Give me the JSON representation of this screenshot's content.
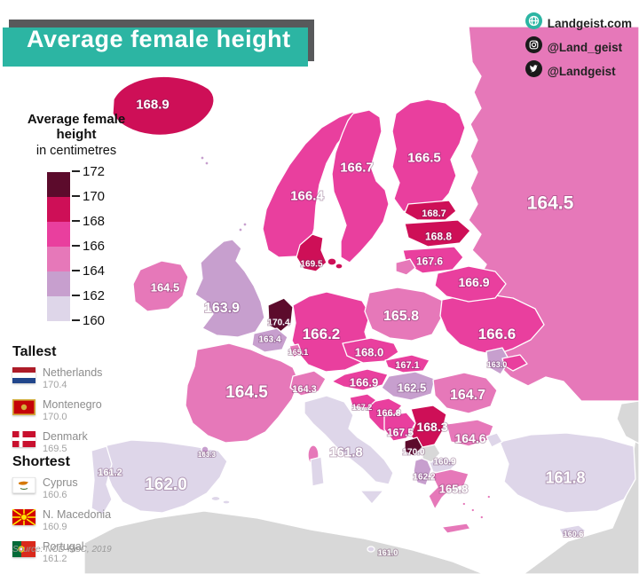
{
  "title": "Average female height",
  "branding": {
    "website": "Landgeist.com",
    "instagram": "@Land_geist",
    "twitter": "@Landgeist"
  },
  "legend": {
    "title": "Average female height",
    "subtitle": "in centimetres",
    "ticks": [
      "172",
      "170",
      "168",
      "166",
      "164",
      "162",
      "160"
    ],
    "band_colors": [
      "#ded6e9",
      "#c79fce",
      "#e678b9",
      "#e93f9e",
      "#ce0f57",
      "#5c0b2c"
    ],
    "no_data_color": "#d8d8d8"
  },
  "tallest": {
    "heading": "Tallest",
    "entries": [
      {
        "flag": "nl",
        "country": "Netherlands",
        "value": "170.4"
      },
      {
        "flag": "me",
        "country": "Montenegro",
        "value": "170.0"
      },
      {
        "flag": "dk",
        "country": "Denmark",
        "value": "169.5"
      }
    ]
  },
  "shortest": {
    "heading": "Shortest",
    "entries": [
      {
        "flag": "cy",
        "country": "Cyprus",
        "value": "160.6"
      },
      {
        "flag": "mk",
        "country": "N. Macedonia",
        "value": "160.9"
      },
      {
        "flag": "pt",
        "country": "Portugal",
        "value": "161.2"
      }
    ]
  },
  "source": "Source: NCD-RisC, 2019",
  "chart_data": {
    "type": "choropleth_map",
    "region": "Europe",
    "metric": "Average female height in centimetres",
    "scale_min": 160,
    "scale_max": 172,
    "countries": [
      {
        "id": "ru",
        "name": "Russia",
        "value": 164.5
      },
      {
        "id": "is",
        "name": "Iceland",
        "value": 168.9
      },
      {
        "id": "no",
        "name": "Norway",
        "value": 166.4
      },
      {
        "id": "se",
        "name": "Sweden",
        "value": 166.7
      },
      {
        "id": "fi",
        "name": "Finland",
        "value": 166.5
      },
      {
        "id": "ee",
        "name": "Estonia",
        "value": 168.7
      },
      {
        "id": "lv",
        "name": "Latvia",
        "value": 168.8
      },
      {
        "id": "lt",
        "name": "Lithuania",
        "value": 167.6
      },
      {
        "id": "dk",
        "name": "Denmark",
        "value": 169.5
      },
      {
        "id": "ie",
        "name": "Ireland",
        "value": 164.5
      },
      {
        "id": "gb",
        "name": "United Kingdom",
        "value": 163.9
      },
      {
        "id": "fr",
        "name": "France",
        "value": 164.5
      },
      {
        "id": "de",
        "name": "Germany",
        "value": 166.2
      },
      {
        "id": "pl",
        "name": "Poland",
        "value": 165.8
      },
      {
        "id": "ua",
        "name": "Ukraine",
        "value": 166.6
      },
      {
        "id": "by",
        "name": "Belarus",
        "value": 166.9
      },
      {
        "id": "cz",
        "name": "Czechia",
        "value": 168.0
      },
      {
        "id": "sk",
        "name": "Slovakia",
        "value": 167.1
      },
      {
        "id": "at",
        "name": "Austria",
        "value": 166.9
      },
      {
        "id": "ch",
        "name": "Switzerland",
        "value": 164.3
      },
      {
        "id": "hu",
        "name": "Hungary",
        "value": 162.5
      },
      {
        "id": "ro",
        "name": "Romania",
        "value": 164.7
      },
      {
        "id": "md",
        "name": "Moldova",
        "value": 163.0
      },
      {
        "id": "bg",
        "name": "Bulgaria",
        "value": 164.6
      },
      {
        "id": "rs",
        "name": "Serbia",
        "value": 168.3
      },
      {
        "id": "hr",
        "name": "Croatia",
        "value": 166.8
      },
      {
        "id": "si",
        "name": "Slovenia",
        "value": 167.2
      },
      {
        "id": "ba",
        "name": "Bosnia and Herzegovina",
        "value": 167.5
      },
      {
        "id": "me",
        "name": "Montenegro",
        "value": 170.0
      },
      {
        "id": "al",
        "name": "Albania",
        "value": 162.2
      },
      {
        "id": "mk",
        "name": "North Macedonia",
        "value": 160.9
      },
      {
        "id": "gr",
        "name": "Greece",
        "value": 165.8
      },
      {
        "id": "it",
        "name": "Italy",
        "value": 161.8
      },
      {
        "id": "es",
        "name": "Spain",
        "value": 162.0
      },
      {
        "id": "pt",
        "name": "Portugal",
        "value": 161.2
      },
      {
        "id": "nl",
        "name": "Netherlands",
        "value": 170.4
      },
      {
        "id": "be",
        "name": "Belgium",
        "value": 163.4
      },
      {
        "id": "lu",
        "name": "Luxembourg",
        "value": 165.1
      },
      {
        "id": "tr",
        "name": "Turkey",
        "value": 161.8
      },
      {
        "id": "cy",
        "name": "Cyprus",
        "value": 160.6
      },
      {
        "id": "ad",
        "name": "Andorra",
        "value": 163.3
      },
      {
        "id": "mt",
        "name": "Malta",
        "value": 161.0
      }
    ],
    "no_data": [
      "Kosovo"
    ]
  }
}
